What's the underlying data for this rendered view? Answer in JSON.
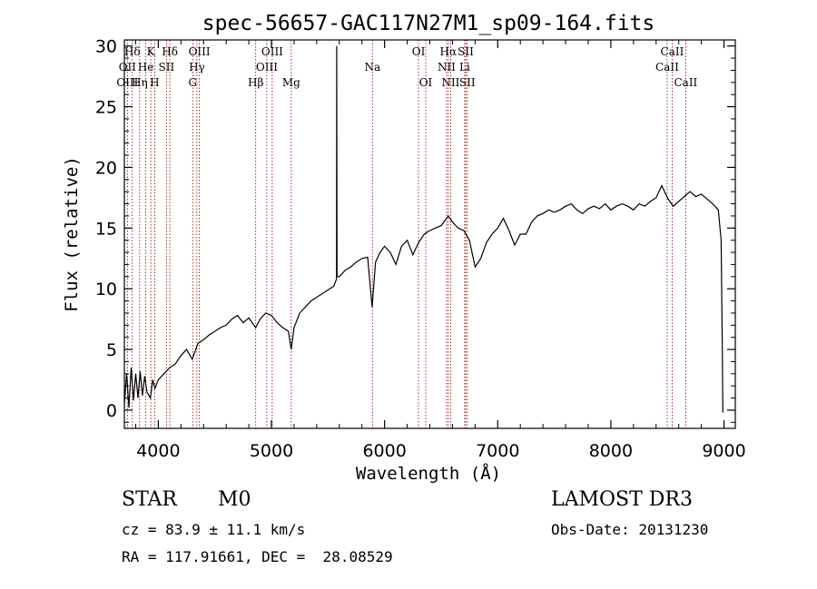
{
  "chart_data": {
    "type": "line",
    "title": "spec-56657-GAC117N27M1_sp09-164.fits",
    "xlabel": "Wavelength (Å)",
    "ylabel": "Flux (relative)",
    "xlim": [
      3700,
      9100
    ],
    "ylim": [
      -1.5,
      30.5
    ],
    "x_ticks": [
      4000,
      5000,
      6000,
      7000,
      8000,
      9000
    ],
    "y_ticks": [
      0,
      5,
      10,
      15,
      20,
      25,
      30
    ],
    "series": [
      {
        "name": "spectrum",
        "points": [
          [
            3700,
            0.5
          ],
          [
            3720,
            3.0
          ],
          [
            3740,
            0.2
          ],
          [
            3760,
            3.5
          ],
          [
            3780,
            0.8
          ],
          [
            3800,
            3.0
          ],
          [
            3820,
            1.0
          ],
          [
            3840,
            3.2
          ],
          [
            3860,
            1.2
          ],
          [
            3880,
            2.8
          ],
          [
            3900,
            1.5
          ],
          [
            3930,
            1.0
          ],
          [
            3950,
            2.5
          ],
          [
            3970,
            1.8
          ],
          [
            4000,
            2.5
          ],
          [
            4050,
            3.0
          ],
          [
            4100,
            3.5
          ],
          [
            4150,
            3.8
          ],
          [
            4200,
            4.5
          ],
          [
            4250,
            5.0
          ],
          [
            4300,
            4.2
          ],
          [
            4350,
            5.5
          ],
          [
            4400,
            5.8
          ],
          [
            4450,
            6.2
          ],
          [
            4500,
            6.5
          ],
          [
            4550,
            6.8
          ],
          [
            4600,
            7.0
          ],
          [
            4650,
            7.5
          ],
          [
            4700,
            7.8
          ],
          [
            4750,
            7.2
          ],
          [
            4800,
            7.6
          ],
          [
            4860,
            6.8
          ],
          [
            4900,
            7.5
          ],
          [
            4950,
            8.0
          ],
          [
            5000,
            7.8
          ],
          [
            5050,
            7.2
          ],
          [
            5100,
            6.8
          ],
          [
            5150,
            6.5
          ],
          [
            5175,
            5.0
          ],
          [
            5200,
            6.8
          ],
          [
            5250,
            8.0
          ],
          [
            5300,
            8.5
          ],
          [
            5350,
            9.0
          ],
          [
            5400,
            9.3
          ],
          [
            5450,
            9.6
          ],
          [
            5500,
            9.9
          ],
          [
            5550,
            10.2
          ],
          [
            5575,
            10.8
          ],
          [
            5577,
            30.0
          ],
          [
            5580,
            11.0
          ],
          [
            5600,
            11.0
          ],
          [
            5650,
            11.5
          ],
          [
            5700,
            11.8
          ],
          [
            5750,
            12.2
          ],
          [
            5800,
            12.5
          ],
          [
            5850,
            12.6
          ],
          [
            5890,
            8.5
          ],
          [
            5920,
            12.2
          ],
          [
            5960,
            13.0
          ],
          [
            6000,
            13.5
          ],
          [
            6050,
            13.0
          ],
          [
            6100,
            12.0
          ],
          [
            6150,
            13.5
          ],
          [
            6200,
            14.0
          ],
          [
            6250,
            12.8
          ],
          [
            6300,
            13.8
          ],
          [
            6350,
            14.5
          ],
          [
            6400,
            14.8
          ],
          [
            6450,
            15.0
          ],
          [
            6500,
            15.2
          ],
          [
            6563,
            16.0
          ],
          [
            6600,
            15.5
          ],
          [
            6650,
            15.0
          ],
          [
            6700,
            14.8
          ],
          [
            6750,
            14.0
          ],
          [
            6800,
            11.8
          ],
          [
            6850,
            12.5
          ],
          [
            6900,
            13.8
          ],
          [
            6950,
            14.5
          ],
          [
            7000,
            15.0
          ],
          [
            7050,
            15.8
          ],
          [
            7100,
            14.8
          ],
          [
            7150,
            13.6
          ],
          [
            7200,
            14.5
          ],
          [
            7250,
            14.5
          ],
          [
            7300,
            15.5
          ],
          [
            7350,
            16.0
          ],
          [
            7400,
            16.2
          ],
          [
            7450,
            16.5
          ],
          [
            7500,
            16.3
          ],
          [
            7550,
            16.5
          ],
          [
            7600,
            16.8
          ],
          [
            7650,
            17.0
          ],
          [
            7700,
            16.5
          ],
          [
            7750,
            16.2
          ],
          [
            7800,
            16.6
          ],
          [
            7850,
            16.8
          ],
          [
            7900,
            16.6
          ],
          [
            7950,
            17.0
          ],
          [
            8000,
            16.5
          ],
          [
            8050,
            16.8
          ],
          [
            8100,
            17.0
          ],
          [
            8150,
            16.8
          ],
          [
            8200,
            16.5
          ],
          [
            8250,
            17.0
          ],
          [
            8300,
            16.8
          ],
          [
            8350,
            17.2
          ],
          [
            8400,
            17.5
          ],
          [
            8450,
            18.5
          ],
          [
            8500,
            17.5
          ],
          [
            8550,
            16.8
          ],
          [
            8600,
            17.2
          ],
          [
            8650,
            17.6
          ],
          [
            8700,
            18.0
          ],
          [
            8750,
            17.6
          ],
          [
            8800,
            17.8
          ],
          [
            8850,
            17.4
          ],
          [
            8900,
            17.0
          ],
          [
            8950,
            16.5
          ],
          [
            8975,
            14.0
          ],
          [
            8985,
            5.0
          ],
          [
            8990,
            -0.2
          ]
        ]
      }
    ],
    "line_labels": [
      {
        "label": "Hδ",
        "wavelength": 3770,
        "row": 1
      },
      {
        "label": "K",
        "wavelength": 3934,
        "row": 1
      },
      {
        "label": "Hδ",
        "wavelength": 4102,
        "row": 1
      },
      {
        "label": "OIII",
        "wavelength": 4363,
        "row": 1
      },
      {
        "label": "OIII",
        "wavelength": 5007,
        "row": 1
      },
      {
        "label": "OI",
        "wavelength": 6300,
        "row": 1
      },
      {
        "label": "Hα",
        "wavelength": 6563,
        "row": 1
      },
      {
        "label": "SII",
        "wavelength": 6717,
        "row": 1
      },
      {
        "label": "CaII",
        "wavelength": 8542,
        "row": 1
      },
      {
        "label": "OII",
        "wavelength": 3727,
        "row": 2
      },
      {
        "label": "He",
        "wavelength": 3889,
        "row": 2
      },
      {
        "label": "SII",
        "wavelength": 4072,
        "row": 2
      },
      {
        "label": "Hγ",
        "wavelength": 4341,
        "row": 2
      },
      {
        "label": "OIII",
        "wavelength": 4959,
        "row": 2
      },
      {
        "label": "Na",
        "wavelength": 5893,
        "row": 2
      },
      {
        "label": "NII",
        "wavelength": 6548,
        "row": 2
      },
      {
        "label": "Li",
        "wavelength": 6708,
        "row": 2
      },
      {
        "label": "CaII",
        "wavelength": 8498,
        "row": 2
      },
      {
        "label": "OIII",
        "wavelength": 3727,
        "row": 3
      },
      {
        "label": "Hη",
        "wavelength": 3835,
        "row": 3
      },
      {
        "label": "H",
        "wavelength": 3968,
        "row": 3
      },
      {
        "label": "G",
        "wavelength": 4304,
        "row": 3
      },
      {
        "label": "Hβ",
        "wavelength": 4861,
        "row": 3
      },
      {
        "label": "Mg",
        "wavelength": 5175,
        "row": 3
      },
      {
        "label": "OI",
        "wavelength": 6364,
        "row": 3
      },
      {
        "label": "NII",
        "wavelength": 6584,
        "row": 3
      },
      {
        "label": "SII",
        "wavelength": 6731,
        "row": 3
      },
      {
        "label": "CaII",
        "wavelength": 8662,
        "row": 3
      }
    ]
  },
  "info": {
    "object_class": "STAR",
    "subclass": "M0",
    "survey": "LAMOST DR3",
    "redshift": "cz = 83.9 ± 11.1 km/s",
    "obs_date": "Obs-Date: 20131230",
    "coords": "RA = 117.91661, DEC =  28.08529"
  },
  "colors": {
    "spectrum": "#000000",
    "line_marker": "#8b0000",
    "axis": "#000000"
  }
}
